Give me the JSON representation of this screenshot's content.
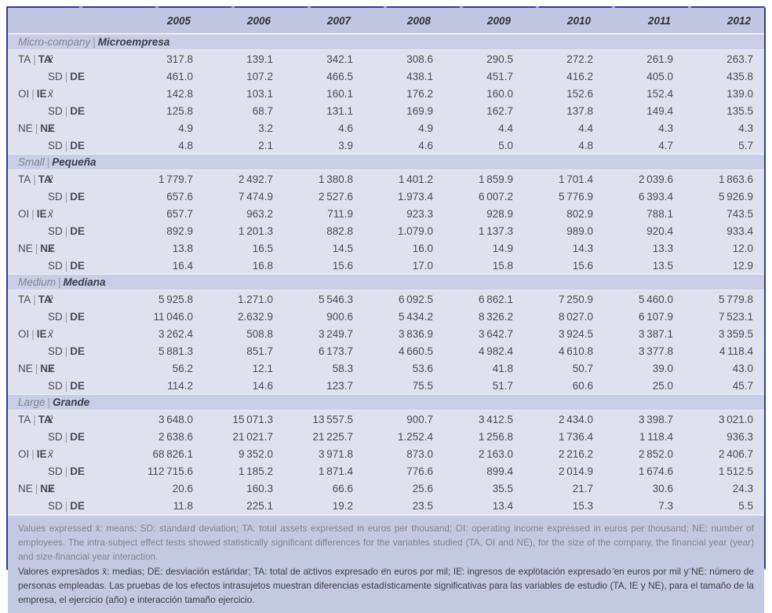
{
  "table": {
    "labels": {
      "mean": "x̄",
      "sep": "|",
      "sd_en": "SD",
      "sd_es": "DE"
    },
    "years": [
      "2005",
      "2006",
      "2007",
      "2008",
      "2009",
      "2010",
      "2011",
      "2012"
    ],
    "sections": [
      {
        "en": "Micro-company",
        "es": "Microempresa",
        "rows": [
          {
            "var_en": "TA",
            "var_es": "TA",
            "v": [
              "317.8",
              "139.1",
              "342.1",
              "308.6",
              "290.5",
              "272.2",
              "261.9",
              "263.7"
            ]
          },
          {
            "v": [
              "461.0",
              "107.2",
              "466.5",
              "438.1",
              "451.7",
              "416.2",
              "405.0",
              "435.8"
            ]
          },
          {
            "var_en": "OI",
            "var_es": "IE",
            "v": [
              "142.8",
              "103.1",
              "160.1",
              "176.2",
              "160.0",
              "152.6",
              "152.4",
              "139.0"
            ]
          },
          {
            "v": [
              "125.8",
              "68.7",
              "131.1",
              "169.9",
              "162.7",
              "137.8",
              "149.4",
              "135.5"
            ]
          },
          {
            "var_en": "NE",
            "var_es": "NE",
            "v": [
              "4.9",
              "3.2",
              "4.6",
              "4.9",
              "4.4",
              "4.4",
              "4.3",
              "4.3"
            ]
          },
          {
            "v": [
              "4.8",
              "2.1",
              "3.9",
              "4.6",
              "5.0",
              "4.8",
              "4.7",
              "5.7"
            ]
          }
        ]
      },
      {
        "en": "Small",
        "es": "Pequeña",
        "rows": [
          {
            "var_en": "TA",
            "var_es": "TA",
            "v": [
              "1 779.7",
              "2 492.7",
              "1 380.8",
              "1 401.2",
              "1 859.9",
              "1 701.4",
              "2 039.6",
              "1 863.6"
            ]
          },
          {
            "v": [
              "657.6",
              "7 474.9",
              "2 527.6",
              "1.973.4",
              "6 007.2",
              "5 776.9",
              "6 393.4",
              "5 926.9"
            ]
          },
          {
            "var_en": "OI",
            "var_es": "IE",
            "v": [
              "657.7",
              "963.2",
              "711.9",
              "923.3",
              "928.9",
              "802.9",
              "788.1",
              "743.5"
            ]
          },
          {
            "v": [
              "892.9",
              "1 201.3",
              "882.8",
              "1.079.0",
              "1 137.3",
              "989.0",
              "920.4",
              "933.4"
            ]
          },
          {
            "var_en": "NE",
            "var_es": "NE",
            "v": [
              "13.8",
              "16.5",
              "14.5",
              "16.0",
              "14.9",
              "14.3",
              "13.3",
              "12.0"
            ]
          },
          {
            "v": [
              "16.4",
              "16.8",
              "15.6",
              "17.0",
              "15.8",
              "15.6",
              "13.5",
              "12.9"
            ]
          }
        ]
      },
      {
        "en": "Medium",
        "es": "Mediana",
        "rows": [
          {
            "var_en": "TA",
            "var_es": "TA",
            "v": [
              "5 925.8",
              "1.271.0",
              "5 546.3",
              "6 092.5",
              "6 862.1",
              "7 250.9",
              "5 460.0",
              "5 779.8"
            ]
          },
          {
            "v": [
              "11 046.0",
              "2.632.9",
              "900.6",
              "5 434.2",
              "8 326.2",
              "8 027.0",
              "6 107.9",
              "7 523.1"
            ]
          },
          {
            "var_en": "OI",
            "var_es": "IE",
            "v": [
              "3 262.4",
              "508.8",
              "3 249.7",
              "3 836.9",
              "3 642.7",
              "3 924.5",
              "3 387.1",
              "3 359.5"
            ]
          },
          {
            "v": [
              "5 881.3",
              "851.7",
              "6 173.7",
              "4 660.5",
              "4 982.4",
              "4 610.8",
              "3 377.8",
              "4 118.4"
            ]
          },
          {
            "var_en": "NE",
            "var_es": "NE",
            "v": [
              "56.2",
              "12.1",
              "58.3",
              "53.6",
              "41.8",
              "50.7",
              "39.0",
              "43.0"
            ]
          },
          {
            "v": [
              "114.2",
              "14.6",
              "123.7",
              "75.5",
              "51.7",
              "60.6",
              "25.0",
              "45.7"
            ]
          }
        ]
      },
      {
        "en": "Large",
        "es": "Grande",
        "rows": [
          {
            "var_en": "TA",
            "var_es": "TA",
            "v": [
              "3 648.0",
              "15 071.3",
              "13 557.5",
              "900.7",
              "3 412.5",
              "2 434.0",
              "3 398.7",
              "3 021.0"
            ]
          },
          {
            "v": [
              "2 638.6",
              "21 021.7",
              "21 225.7",
              "1.252.4",
              "1 256.8",
              "1 736.4",
              "1 118.4",
              "936.3"
            ]
          },
          {
            "var_en": "OI",
            "var_es": "IE",
            "v": [
              "68 826.1",
              "9 352.0",
              "3 971.8",
              "873.0",
              "2 163.0",
              "2 216.2",
              "2 852.0",
              "2 406.7"
            ]
          },
          {
            "v": [
              "112 715.6",
              "1 185.2",
              "1 871.4",
              "776.6",
              "899.4",
              "2 014.9",
              "1 674.6",
              "1 512.5"
            ]
          },
          {
            "var_en": "NE",
            "var_es": "NE",
            "v": [
              "20.6",
              "160.3",
              "66.6",
              "25.6",
              "35.5",
              "21.7",
              "30.6",
              "24.3"
            ]
          },
          {
            "v": [
              "11.8",
              "225.1",
              "19.2",
              "23.5",
              "13.4",
              "15.3",
              "7.3",
              "5.5"
            ]
          }
        ]
      }
    ]
  },
  "footnotes": {
    "en": "Values expressed x̄: means; SD: standard deviation; TA: total assets expressed in euros per thousand; OI: operating income expressed in euros per thousand; NE: number of employees. The intra-subject effect tests showed statistically significant differences for the variables studied (TA, OI and NE), for the size of the company, the financial year (year) and size-financial year interaction.",
    "es": "Valores expresados x̄: medias; DE: desviación estándar; TA: total de activos expresado en euros por mil; IE: ingresos de explotación expresado en euros por mil y NE: número de personas empleadas. Las pruebas de los efectos intrasujetos muestran diferencias estadísticamente significativas para las variables de estudio (TA, IE y NE), para el tamaño de la empresa, el ejercicio (año) e interacción tamaño ejercicio."
  }
}
